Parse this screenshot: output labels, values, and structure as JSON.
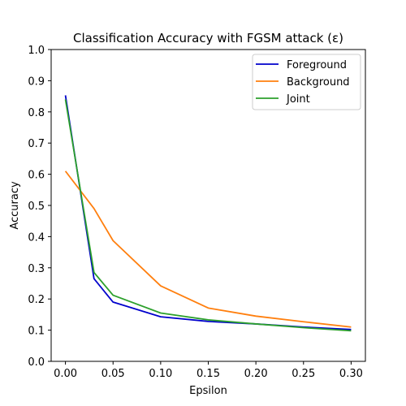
{
  "chart_data": {
    "type": "line",
    "title": "Classification Accuracy with FGSM attack (ε)",
    "xlabel": "Epsilon",
    "ylabel": "Accuracy",
    "xlim": [
      -0.015,
      0.315
    ],
    "ylim": [
      0.0,
      1.0
    ],
    "xticks": [
      0.0,
      0.05,
      0.1,
      0.15,
      0.2,
      0.25,
      0.3
    ],
    "xtick_labels": [
      "0.00",
      "0.05",
      "0.10",
      "0.15",
      "0.20",
      "0.25",
      "0.30"
    ],
    "yticks": [
      0.0,
      0.1,
      0.2,
      0.3,
      0.4,
      0.5,
      0.6,
      0.7,
      0.8,
      0.9,
      1.0
    ],
    "ytick_labels": [
      "0.0",
      "0.1",
      "0.2",
      "0.3",
      "0.4",
      "0.5",
      "0.6",
      "0.7",
      "0.8",
      "0.9",
      "1.0"
    ],
    "grid": false,
    "legend_position": "top-right",
    "x": [
      0.0,
      0.03,
      0.05,
      0.1,
      0.15,
      0.2,
      0.25,
      0.3
    ],
    "series": [
      {
        "name": "Foreground",
        "color": "#0000cc",
        "values": [
          0.853,
          0.265,
          0.19,
          0.143,
          0.128,
          0.12,
          0.11,
          0.102
        ]
      },
      {
        "name": "Background",
        "color": "#ff7f0e",
        "values": [
          0.61,
          0.49,
          0.387,
          0.242,
          0.171,
          0.145,
          0.127,
          0.11
        ]
      },
      {
        "name": "Joint",
        "color": "#2ca02c",
        "values": [
          0.84,
          0.285,
          0.212,
          0.155,
          0.133,
          0.12,
          0.108,
          0.098
        ]
      }
    ]
  }
}
